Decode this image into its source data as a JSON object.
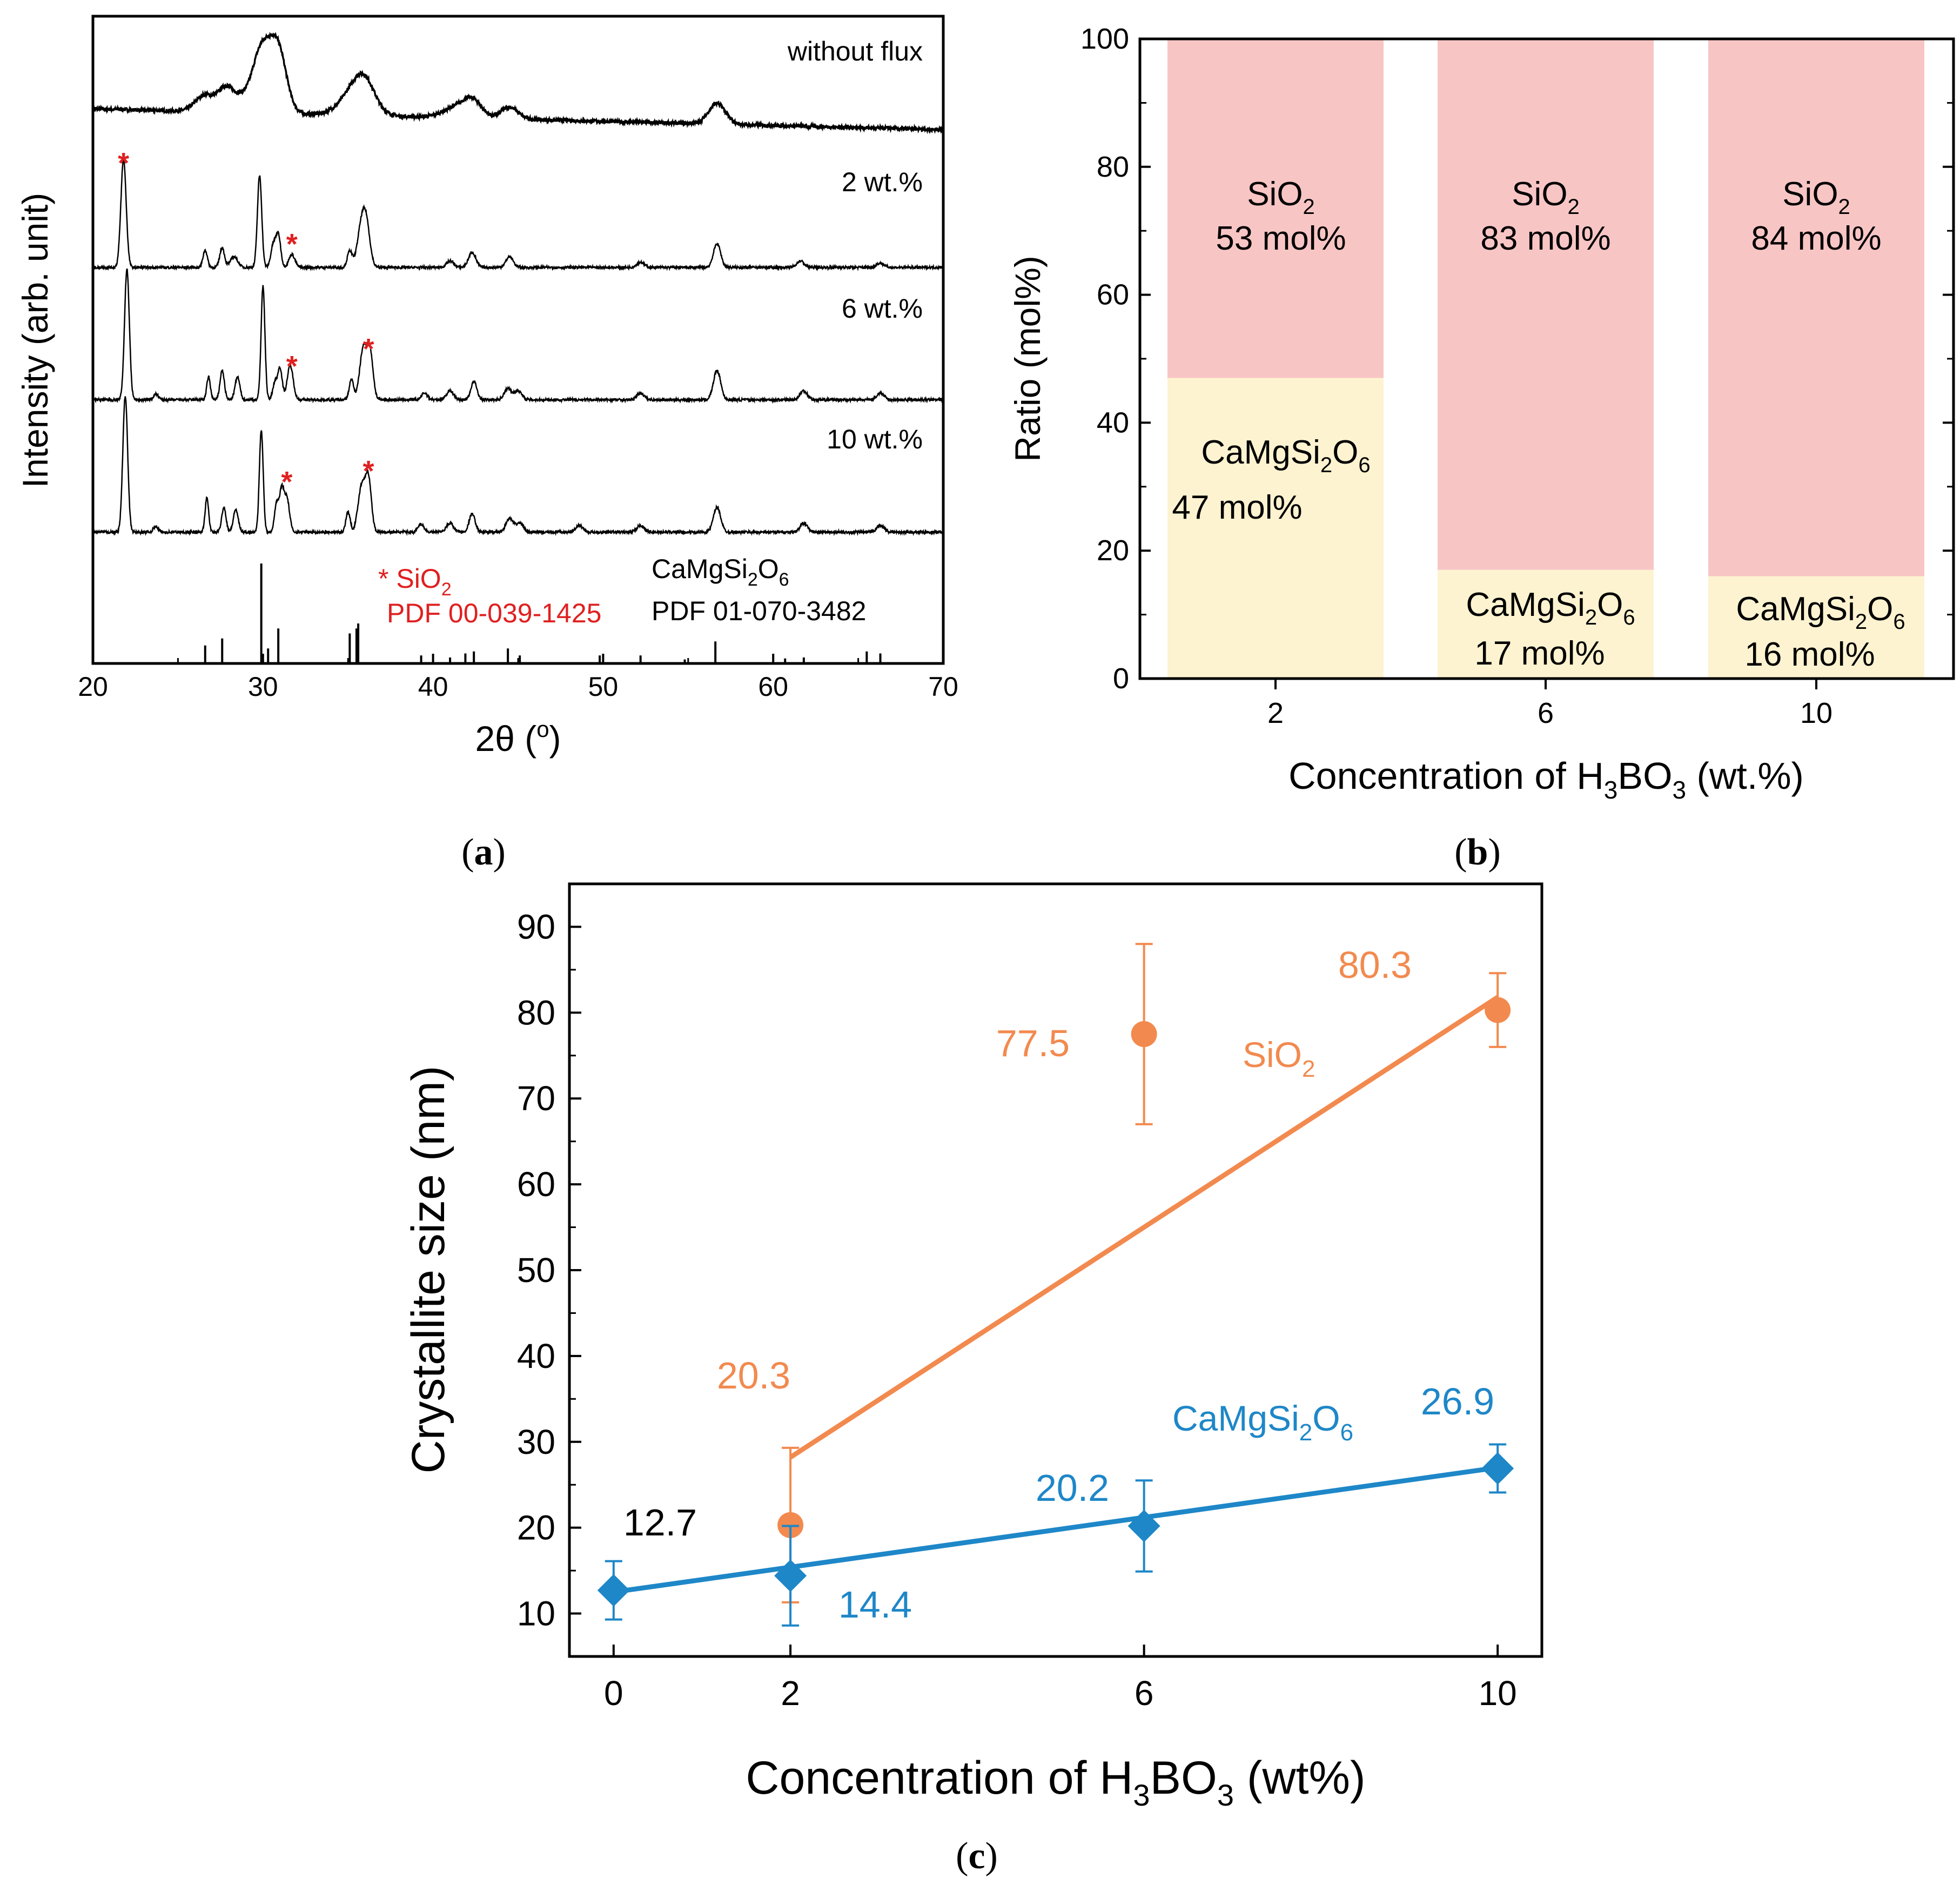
{
  "chart_data": [
    {
      "id": "a",
      "type": "line",
      "panel_label": "(a)",
      "panel_letter": "a",
      "xlabel": "2θ (°)",
      "ylabel": "Intensity (arb. unit)",
      "xlim": [
        20,
        70
      ],
      "xticks": [
        20,
        30,
        40,
        50,
        60,
        70
      ],
      "yticks": [],
      "series": [
        {
          "name": "without flux",
          "baseline": 0.9,
          "noise": 0.03,
          "peaks": [
            [
              26.6,
              0.28,
              0.8
            ],
            [
              27.8,
              0.38,
              0.6
            ],
            [
              28.6,
              0.2,
              0.6
            ],
            [
              29.9,
              1.05,
              0.8
            ],
            [
              30.9,
              1.0,
              0.7
            ],
            [
              35.5,
              0.45,
              1.2
            ],
            [
              36.0,
              0.3,
              0.8
            ],
            [
              41.2,
              0.15,
              1.0
            ],
            [
              42.3,
              0.3,
              0.8
            ],
            [
              44.5,
              0.2,
              0.7
            ],
            [
              56.7,
              0.35,
              0.7
            ]
          ],
          "drift": 0.35
        },
        {
          "name": "2 wt.%",
          "baseline": 0.0,
          "noise": 0.012,
          "peaks": [
            [
              21.8,
              1.0,
              0.22
            ],
            [
              26.6,
              0.16,
              0.18
            ],
            [
              27.6,
              0.18,
              0.2
            ],
            [
              28.3,
              0.1,
              0.3
            ],
            [
              29.8,
              0.85,
              0.18
            ],
            [
              30.6,
              0.2,
              0.2
            ],
            [
              30.9,
              0.3,
              0.2
            ],
            [
              31.7,
              0.12,
              0.25
            ],
            [
              35.1,
              0.15,
              0.2
            ],
            [
              35.8,
              0.38,
              0.35
            ],
            [
              36.1,
              0.3,
              0.3
            ],
            [
              41.0,
              0.06,
              0.3
            ],
            [
              42.3,
              0.14,
              0.3
            ],
            [
              44.5,
              0.1,
              0.3
            ],
            [
              52.2,
              0.05,
              0.3
            ],
            [
              56.7,
              0.22,
              0.3
            ],
            [
              61.6,
              0.06,
              0.3
            ],
            [
              66.3,
              0.04,
              0.3
            ]
          ],
          "drift": 0.0
        },
        {
          "name": "6 wt.%",
          "baseline": 0.0,
          "noise": 0.012,
          "peaks": [
            [
              22.0,
              1.15,
              0.2
            ],
            [
              23.7,
              0.05,
              0.2
            ],
            [
              26.8,
              0.2,
              0.15
            ],
            [
              27.6,
              0.26,
              0.18
            ],
            [
              28.5,
              0.2,
              0.2
            ],
            [
              30.0,
              1.0,
              0.16
            ],
            [
              30.7,
              0.15,
              0.18
            ],
            [
              31.0,
              0.28,
              0.18
            ],
            [
              31.6,
              0.3,
              0.25
            ],
            [
              35.2,
              0.18,
              0.18
            ],
            [
              35.9,
              0.45,
              0.3
            ],
            [
              36.3,
              0.4,
              0.25
            ],
            [
              39.5,
              0.06,
              0.25
            ],
            [
              41.0,
              0.08,
              0.3
            ],
            [
              42.4,
              0.16,
              0.25
            ],
            [
              44.4,
              0.1,
              0.3
            ],
            [
              45.0,
              0.08,
              0.3
            ],
            [
              52.2,
              0.06,
              0.3
            ],
            [
              56.7,
              0.26,
              0.3
            ],
            [
              61.8,
              0.08,
              0.3
            ],
            [
              66.3,
              0.06,
              0.3
            ]
          ],
          "drift": 0.0
        },
        {
          "name": "10 wt.%",
          "baseline": 0.0,
          "noise": 0.012,
          "peaks": [
            [
              21.9,
              1.2,
              0.2
            ],
            [
              23.7,
              0.05,
              0.2
            ],
            [
              26.7,
              0.3,
              0.15
            ],
            [
              27.7,
              0.22,
              0.18
            ],
            [
              28.4,
              0.2,
              0.2
            ],
            [
              29.9,
              0.9,
              0.16
            ],
            [
              30.8,
              0.25,
              0.18
            ],
            [
              31.1,
              0.35,
              0.18
            ],
            [
              31.4,
              0.3,
              0.22
            ],
            [
              35.0,
              0.18,
              0.18
            ],
            [
              35.8,
              0.4,
              0.3
            ],
            [
              36.2,
              0.45,
              0.25
            ],
            [
              39.3,
              0.07,
              0.25
            ],
            [
              41.0,
              0.08,
              0.3
            ],
            [
              42.3,
              0.16,
              0.25
            ],
            [
              44.5,
              0.12,
              0.3
            ],
            [
              45.1,
              0.08,
              0.3
            ],
            [
              48.6,
              0.06,
              0.3
            ],
            [
              52.2,
              0.06,
              0.3
            ],
            [
              56.7,
              0.22,
              0.3
            ],
            [
              61.8,
              0.08,
              0.3
            ],
            [
              66.3,
              0.06,
              0.3
            ]
          ],
          "drift": 0.0
        }
      ],
      "reference_sticks": {
        "name": "CaMgSi2O6 PDF 01-070-3482",
        "sticks": [
          [
            26.6,
            0.18
          ],
          [
            27.6,
            0.25
          ],
          [
            29.9,
            1.0
          ],
          [
            30.3,
            0.15
          ],
          [
            30.9,
            0.35
          ],
          [
            35.1,
            0.3
          ],
          [
            35.5,
            0.35
          ],
          [
            35.6,
            0.4
          ],
          [
            39.3,
            0.08
          ],
          [
            41.0,
            0.06
          ],
          [
            41.9,
            0.1
          ],
          [
            42.4,
            0.12
          ],
          [
            44.4,
            0.15
          ],
          [
            45.1,
            0.08
          ],
          [
            49.8,
            0.08
          ],
          [
            52.2,
            0.08
          ],
          [
            54.8,
            0.04
          ],
          [
            56.6,
            0.22
          ],
          [
            60.7,
            0.05
          ],
          [
            61.8,
            0.06
          ],
          [
            65.5,
            0.12
          ],
          [
            66.3,
            0.1
          ]
        ]
      },
      "annotations": {
        "sio2_marker": "* SiO",
        "sio2_sub": "2",
        "sio2_pdf": "PDF 00-039-1425",
        "camgsio_pdf": "PDF 01-070-3482",
        "star": "*"
      }
    },
    {
      "id": "b",
      "type": "bar",
      "stacked": true,
      "panel_label": "(b)",
      "panel_letter": "b",
      "xlabel": "Concentration of H3BO3 (wt.%)",
      "ylabel": "Ratio (mol%)",
      "ylim": [
        0,
        100
      ],
      "yticks": [
        0,
        20,
        40,
        60,
        80,
        100
      ],
      "categories": [
        "2",
        "6",
        "10"
      ],
      "series": [
        {
          "name": "CaMgSi2O6",
          "values": [
            47,
            17,
            16
          ],
          "labels": [
            "47 mol%",
            "17 mol%",
            "16 mol%"
          ],
          "color": "#fdf3d0"
        },
        {
          "name": "SiO2",
          "values": [
            53,
            83,
            84
          ],
          "labels": [
            "53 mol%",
            "83 mol%",
            "84 mol%"
          ],
          "color": "#f8c5c5"
        }
      ]
    },
    {
      "id": "c",
      "type": "scatter",
      "panel_label": "(c)",
      "panel_letter": "c",
      "xlabel": "Concentration of H3BO3 (wt%)",
      "ylabel": "Crystallite size (nm)",
      "xlim": [
        -0.5,
        10.5
      ],
      "ylim": [
        5,
        95
      ],
      "xticks": [
        0,
        2,
        6,
        10
      ],
      "yticks": [
        10,
        20,
        30,
        40,
        50,
        60,
        70,
        80,
        90
      ],
      "series": [
        {
          "name": "SiO2",
          "color": "#f28a4f",
          "x": [
            2,
            6,
            10
          ],
          "y": [
            20.3,
            77.5,
            80.3
          ],
          "err": [
            9.0,
            10.5,
            4.3
          ],
          "labels": [
            "20.3",
            "77.5",
            "80.3"
          ],
          "fit": {
            "x": [
              2,
              10
            ],
            "y": [
              28.2,
              81.8
            ]
          }
        },
        {
          "name": "CaMgSi2O6",
          "color": "#1e87c8",
          "x": [
            0,
            2,
            6,
            10
          ],
          "y": [
            12.7,
            14.4,
            20.2,
            26.9
          ],
          "err": [
            3.4,
            5.8,
            5.3,
            2.8
          ],
          "labels": [
            "12.7",
            "14.4",
            "20.2",
            "26.9"
          ],
          "fit": {
            "x": [
              0,
              10
            ],
            "y": [
              12.5,
              27.0
            ]
          }
        }
      ]
    }
  ],
  "text": {
    "a_legend": [
      "without flux",
      "2 wt.%",
      "6 wt.%",
      "10 wt.%"
    ],
    "formula_camg": "CaMgSi",
    "formula_sub2": "2",
    "formula_o": "O",
    "formula_sub6": "6",
    "sio": "SiO",
    "h3bo3_prefix": "Concentration of H",
    "h3bo3_sub3": "3",
    "h3bo3_bo": "BO",
    "b_xlabel_suffix": " (wt.%)",
    "c_xlabel_suffix": " (wt%)",
    "a_xlabel_main": "2θ (",
    "a_xlabel_deg": "o",
    "a_xlabel_close": ")"
  }
}
